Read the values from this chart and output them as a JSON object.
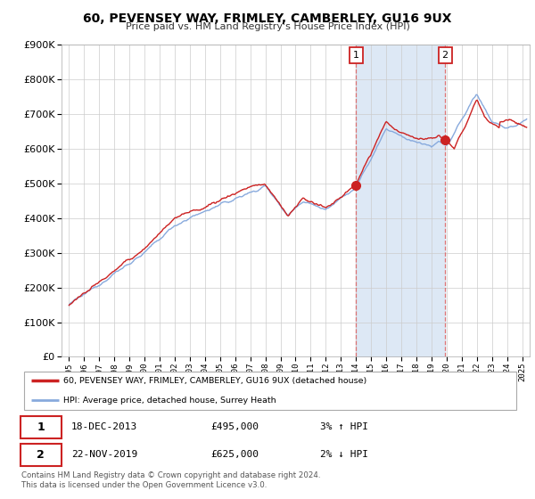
{
  "title": "60, PEVENSEY WAY, FRIMLEY, CAMBERLEY, GU16 9UX",
  "subtitle": "Price paid vs. HM Land Registry's House Price Index (HPI)",
  "ylim": [
    0,
    900000
  ],
  "xlim_start": 1994.5,
  "xlim_end": 2025.5,
  "legend_label_red": "60, PEVENSEY WAY, FRIMLEY, CAMBERLEY, GU16 9UX (detached house)",
  "legend_label_blue": "HPI: Average price, detached house, Surrey Heath",
  "sale1_date": "18-DEC-2013",
  "sale1_price": "£495,000",
  "sale1_hpi": "3% ↑ HPI",
  "sale1_x": 2014.0,
  "sale1_y": 495000,
  "sale2_date": "22-NOV-2019",
  "sale2_price": "£625,000",
  "sale2_hpi": "2% ↓ HPI",
  "sale2_x": 2019.9,
  "sale2_y": 625000,
  "footer": "Contains HM Land Registry data © Crown copyright and database right 2024.\nThis data is licensed under the Open Government Licence v3.0.",
  "plot_bg": "#ffffff",
  "fig_bg": "#ffffff",
  "red_color": "#cc2222",
  "blue_color": "#88aadd",
  "shade_color": "#dde8f5",
  "grid_color": "#cccccc",
  "vline_color": "#dd6666"
}
